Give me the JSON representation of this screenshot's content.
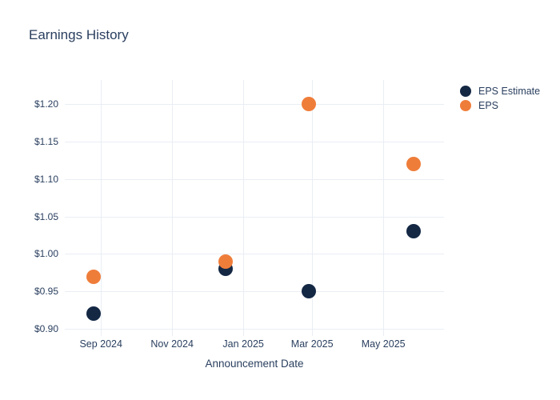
{
  "colors": {
    "background": "#ffffff",
    "text": "#2a3f5f",
    "grid": "#e9eef4",
    "eps_estimate": "#142844",
    "eps": "#ef7d3a"
  },
  "chart_data": {
    "type": "scatter",
    "title": "Earnings History",
    "xlabel": "Announcement Date",
    "ylabel": "",
    "grid": true,
    "legend_position": "outside-top-right",
    "x_domain": [
      "2024-08-01",
      "2025-06-22"
    ],
    "ylim": [
      0.8905,
      1.232
    ],
    "x_ticks": [
      {
        "date": "2024-09-01",
        "label": "Sep 2024"
      },
      {
        "date": "2024-11-01",
        "label": "Nov 2024"
      },
      {
        "date": "2025-01-01",
        "label": "Jan 2025"
      },
      {
        "date": "2025-03-01",
        "label": "Mar 2025"
      },
      {
        "date": "2025-05-01",
        "label": "May 2025"
      }
    ],
    "y_ticks": [
      {
        "value": 0.9,
        "label": "$0.90"
      },
      {
        "value": 0.95,
        "label": "$0.95"
      },
      {
        "value": 1.0,
        "label": "$1.00"
      },
      {
        "value": 1.05,
        "label": "$1.05"
      },
      {
        "value": 1.1,
        "label": "$1.10"
      },
      {
        "value": 1.15,
        "label": "$1.15"
      },
      {
        "value": 1.2,
        "label": "$1.20"
      }
    ],
    "series": [
      {
        "name": "EPS Estimate",
        "color": "#142844",
        "points": [
          {
            "date": "2024-08-26",
            "value": 0.92
          },
          {
            "date": "2024-12-17",
            "value": 0.98
          },
          {
            "date": "2025-02-26",
            "value": 0.95
          },
          {
            "date": "2025-05-27",
            "value": 1.03
          }
        ]
      },
      {
        "name": "EPS",
        "color": "#ef7d3a",
        "points": [
          {
            "date": "2024-08-26",
            "value": 0.97
          },
          {
            "date": "2024-12-17",
            "value": 0.99
          },
          {
            "date": "2025-02-26",
            "value": 1.2
          },
          {
            "date": "2025-05-27",
            "value": 1.12
          }
        ]
      }
    ]
  }
}
